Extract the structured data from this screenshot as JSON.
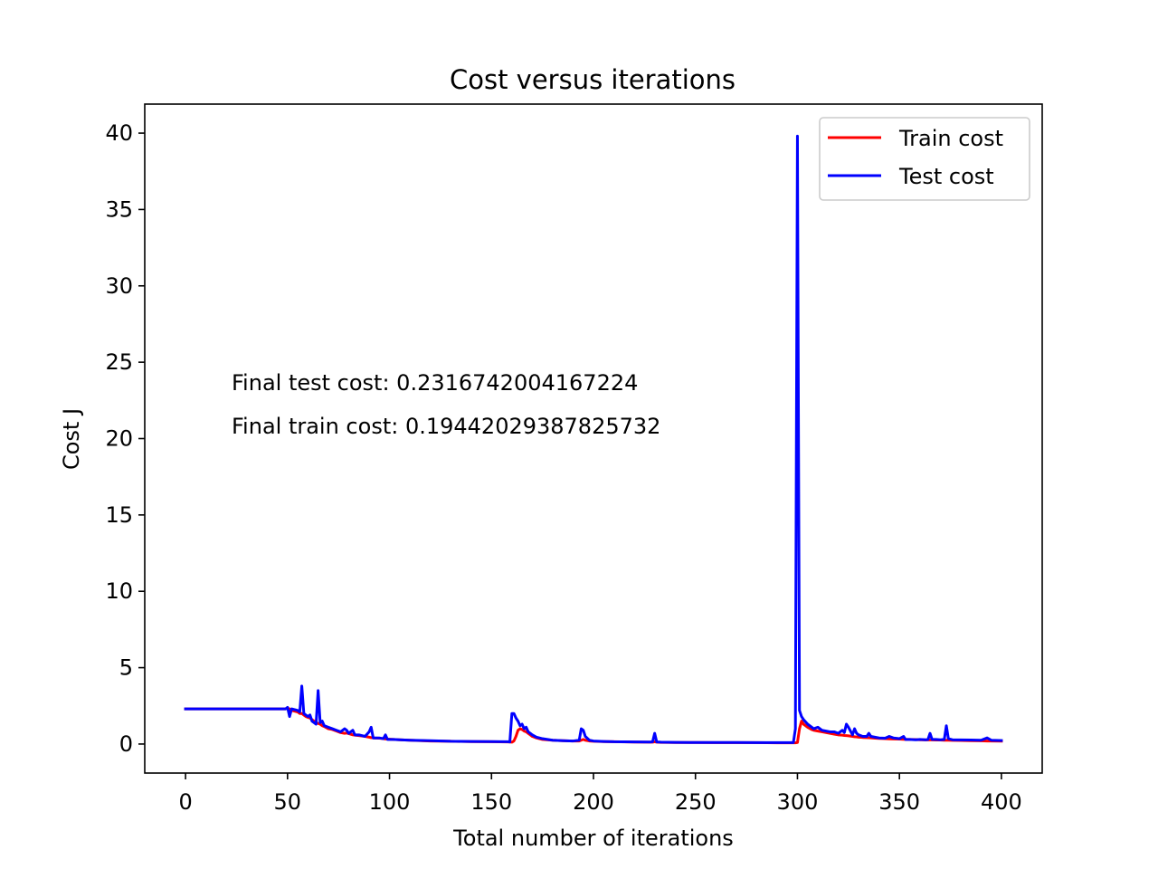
{
  "chart_data": {
    "type": "line",
    "title": "Cost versus iterations",
    "xlabel": "Total number of iterations",
    "ylabel": "Cost J",
    "xlim": [
      -20,
      420
    ],
    "ylim": [
      -1.9,
      41.9
    ],
    "xticks": [
      0,
      50,
      100,
      150,
      200,
      250,
      300,
      350,
      400
    ],
    "yticks": [
      0,
      5,
      10,
      15,
      20,
      25,
      30,
      35,
      40
    ],
    "grid": false,
    "legend_position": "upper right",
    "series": [
      {
        "name": "Train cost",
        "color": "#ff0000",
        "x": [
          0,
          49,
          50,
          51,
          52,
          55,
          56,
          57,
          58,
          59,
          60,
          61,
          62,
          63,
          64,
          65,
          66,
          67,
          68,
          70,
          72,
          74,
          76,
          78,
          79,
          80,
          82,
          83,
          85,
          88,
          90,
          91,
          92,
          95,
          97,
          98,
          99,
          102,
          105,
          110,
          120,
          130,
          140,
          150,
          158,
          159,
          160,
          161,
          162,
          163,
          164,
          165,
          166,
          167,
          168,
          169,
          170,
          172,
          175,
          180,
          185,
          190,
          193,
          194,
          195,
          196,
          198,
          200,
          205,
          210,
          220,
          228,
          229,
          230,
          231,
          233,
          240,
          250,
          260,
          270,
          280,
          290,
          298,
          299,
          300,
          301,
          302,
          303,
          305,
          307,
          308,
          310,
          312,
          314,
          316,
          318,
          320,
          322,
          323,
          324,
          325,
          327,
          328,
          329,
          330,
          332,
          334,
          335,
          336,
          338,
          340,
          343,
          345,
          347,
          350,
          352,
          353,
          355,
          358,
          360,
          363,
          364,
          365,
          366,
          368,
          370,
          372,
          373,
          374,
          376,
          380,
          385,
          390,
          393,
          395,
          400
        ],
        "y": [
          2.3,
          2.3,
          2.35,
          2.3,
          2.2,
          2.1,
          2.0,
          2.0,
          1.9,
          1.8,
          1.75,
          1.7,
          1.6,
          1.5,
          1.4,
          1.35,
          1.3,
          1.2,
          1.15,
          1.0,
          0.95,
          0.85,
          0.75,
          0.7,
          0.72,
          0.68,
          0.6,
          0.58,
          0.55,
          0.5,
          0.45,
          0.42,
          0.4,
          0.38,
          0.35,
          0.33,
          0.32,
          0.3,
          0.28,
          0.25,
          0.2,
          0.18,
          0.16,
          0.15,
          0.14,
          0.13,
          0.12,
          0.2,
          0.5,
          0.9,
          1.0,
          0.95,
          0.85,
          0.8,
          0.7,
          0.6,
          0.5,
          0.4,
          0.3,
          0.25,
          0.22,
          0.2,
          0.2,
          0.25,
          0.3,
          0.25,
          0.2,
          0.18,
          0.16,
          0.15,
          0.13,
          0.12,
          0.12,
          0.15,
          0.12,
          0.11,
          0.1,
          0.1,
          0.09,
          0.09,
          0.09,
          0.08,
          0.08,
          0.08,
          0.1,
          1.0,
          1.5,
          1.3,
          1.1,
          0.95,
          0.9,
          0.85,
          0.8,
          0.75,
          0.7,
          0.65,
          0.6,
          0.58,
          0.56,
          0.55,
          0.54,
          0.5,
          0.48,
          0.47,
          0.45,
          0.43,
          0.42,
          0.41,
          0.4,
          0.38,
          0.37,
          0.35,
          0.34,
          0.33,
          0.32,
          0.31,
          0.3,
          0.3,
          0.29,
          0.28,
          0.27,
          0.27,
          0.27,
          0.27,
          0.26,
          0.26,
          0.25,
          0.25,
          0.25,
          0.24,
          0.23,
          0.22,
          0.21,
          0.2,
          0.2,
          0.19
        ]
      },
      {
        "name": "Test cost",
        "color": "#0000ff",
        "x": [
          0,
          49,
          50,
          51,
          52,
          55,
          56,
          57,
          58,
          59,
          60,
          61,
          62,
          63,
          64,
          65,
          66,
          67,
          68,
          70,
          72,
          74,
          76,
          78,
          79,
          80,
          82,
          83,
          85,
          88,
          90,
          91,
          92,
          95,
          97,
          98,
          99,
          102,
          105,
          110,
          120,
          130,
          140,
          150,
          158,
          159,
          160,
          161,
          162,
          163,
          164,
          165,
          166,
          167,
          168,
          169,
          170,
          172,
          175,
          180,
          185,
          190,
          193,
          194,
          195,
          196,
          198,
          200,
          205,
          210,
          220,
          228,
          229,
          230,
          231,
          233,
          240,
          250,
          260,
          270,
          280,
          290,
          298,
          299,
          300,
          301,
          302,
          303,
          305,
          307,
          308,
          310,
          312,
          314,
          316,
          318,
          320,
          322,
          323,
          324,
          325,
          327,
          328,
          329,
          330,
          332,
          334,
          335,
          336,
          338,
          340,
          343,
          345,
          347,
          350,
          352,
          353,
          355,
          358,
          360,
          363,
          364,
          365,
          366,
          368,
          370,
          372,
          373,
          374,
          376,
          380,
          385,
          390,
          393,
          395,
          400
        ],
        "y": [
          2.3,
          2.3,
          2.4,
          1.8,
          2.3,
          2.2,
          2.1,
          3.8,
          2.0,
          1.9,
          1.8,
          1.9,
          1.5,
          1.4,
          1.3,
          3.5,
          1.4,
          1.5,
          1.2,
          1.1,
          1.0,
          0.9,
          0.8,
          1.0,
          0.9,
          0.7,
          0.9,
          0.6,
          0.6,
          0.5,
          0.8,
          1.1,
          0.4,
          0.4,
          0.35,
          0.6,
          0.3,
          0.3,
          0.28,
          0.25,
          0.22,
          0.18,
          0.17,
          0.16,
          0.15,
          0.14,
          2.0,
          2.0,
          1.7,
          1.5,
          1.2,
          1.3,
          1.0,
          1.1,
          0.8,
          0.7,
          0.6,
          0.45,
          0.35,
          0.25,
          0.22,
          0.2,
          0.25,
          1.0,
          0.9,
          0.5,
          0.25,
          0.2,
          0.17,
          0.15,
          0.14,
          0.13,
          0.15,
          0.7,
          0.14,
          0.12,
          0.11,
          0.1,
          0.1,
          0.1,
          0.09,
          0.09,
          0.09,
          1.0,
          39.8,
          2.2,
          1.8,
          1.6,
          1.3,
          1.1,
          1.0,
          1.1,
          0.9,
          0.85,
          0.8,
          0.8,
          0.7,
          0.9,
          0.75,
          1.3,
          1.1,
          0.6,
          1.0,
          0.7,
          0.6,
          0.5,
          0.5,
          0.7,
          0.5,
          0.45,
          0.4,
          0.38,
          0.5,
          0.4,
          0.35,
          0.5,
          0.3,
          0.3,
          0.28,
          0.3,
          0.28,
          0.3,
          0.7,
          0.3,
          0.3,
          0.28,
          0.3,
          1.2,
          0.35,
          0.28,
          0.27,
          0.26,
          0.25,
          0.4,
          0.25,
          0.23
        ]
      }
    ],
    "annotations": [
      "Final test cost: 0.2316742004167224",
      "Final train cost: 0.19442029387825732"
    ]
  }
}
